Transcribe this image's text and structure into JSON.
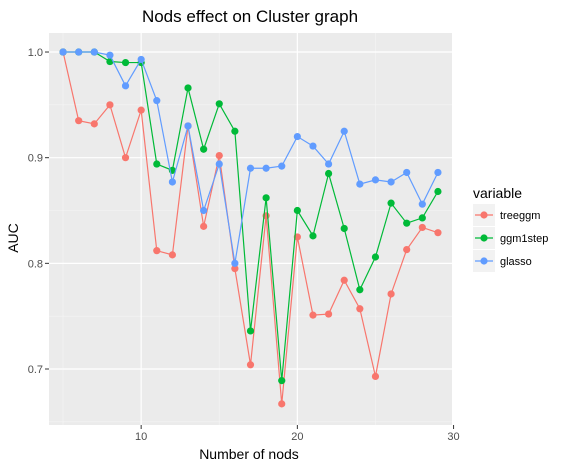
{
  "chart_data": {
    "type": "line",
    "title": "Nods effect on Cluster graph",
    "xlabel": "Number of nods",
    "ylabel": "AUC",
    "xlim": [
      4.1,
      29.9
    ],
    "ylim": [
      0.647,
      1.018
    ],
    "xticks": [
      10,
      20,
      30
    ],
    "yticks": [
      0.7,
      0.8,
      0.9,
      1.0
    ],
    "ytick_labels": [
      "0.7",
      "0.8",
      "0.9",
      "1.0"
    ],
    "grid": true,
    "legend": {
      "title": "variable",
      "position": "right"
    },
    "x": [
      5,
      6,
      7,
      8,
      9,
      10,
      11,
      12,
      13,
      14,
      15,
      16,
      17,
      18,
      19,
      20,
      21,
      22,
      23,
      24,
      25,
      26,
      27,
      28,
      29
    ],
    "series": [
      {
        "name": "treeggm",
        "color": "#F8766D",
        "values": [
          1.0,
          0.935,
          0.932,
          0.95,
          0.9,
          0.945,
          0.812,
          0.808,
          0.93,
          0.835,
          0.902,
          0.795,
          0.704,
          0.845,
          0.667,
          0.825,
          0.751,
          0.752,
          0.784,
          0.757,
          0.693,
          0.771,
          0.813,
          0.834,
          0.829
        ]
      },
      {
        "name": "ggm1step",
        "color": "#00BA38",
        "values": [
          1.0,
          1.0,
          1.0,
          0.991,
          0.99,
          0.99,
          0.894,
          0.888,
          0.966,
          0.908,
          0.951,
          0.925,
          0.736,
          0.862,
          0.689,
          0.85,
          0.826,
          0.885,
          0.833,
          0.775,
          0.806,
          0.857,
          0.838,
          0.843,
          0.868
        ]
      },
      {
        "name": "glasso",
        "color": "#619CFF",
        "values": [
          1.0,
          1.0,
          1.0,
          0.997,
          0.968,
          0.993,
          0.954,
          0.877,
          0.93,
          0.85,
          0.894,
          0.8,
          0.89,
          0.89,
          0.892,
          0.92,
          0.911,
          0.894,
          0.925,
          0.875,
          0.879,
          0.877,
          0.886,
          0.856,
          0.886
        ]
      }
    ]
  }
}
